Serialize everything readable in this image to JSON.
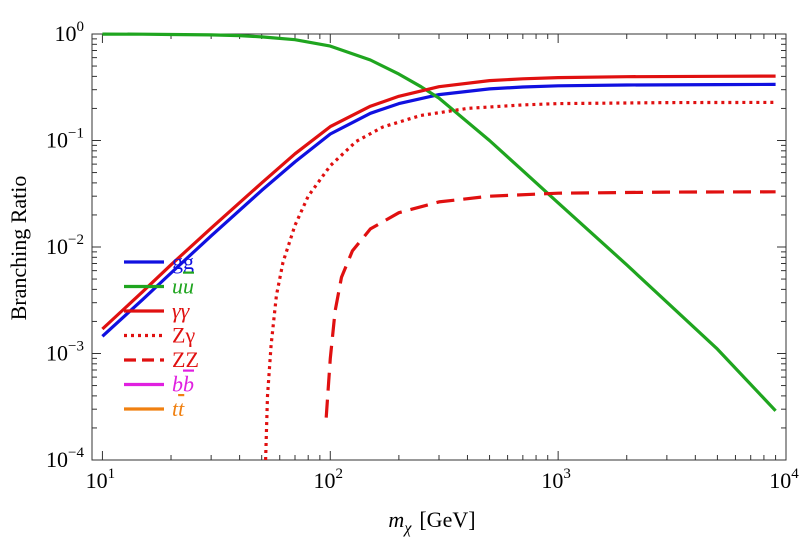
{
  "chart_data": {
    "type": "line",
    "x_scale": "log",
    "y_scale": "log",
    "xlim": [
      9,
      10000
    ],
    "ylim": [
      0.0001,
      1
    ],
    "xlabel": {
      "main": "m",
      "subscript": "χ",
      "unit": "[GeV]"
    },
    "ylabel": "Branching Ratio",
    "x_ticks": [
      {
        "base": "10",
        "exp": "1",
        "value": 10
      },
      {
        "base": "10",
        "exp": "2",
        "value": 100
      },
      {
        "base": "10",
        "exp": "3",
        "value": 1000
      },
      {
        "base": "10",
        "exp": "4",
        "value": 10000
      }
    ],
    "y_ticks": [
      {
        "base": "10",
        "exp": "0",
        "value": 1
      },
      {
        "base": "10",
        "exp": "−1",
        "value": 0.1
      },
      {
        "base": "10",
        "exp": "−2",
        "value": 0.01
      },
      {
        "base": "10",
        "exp": "−3",
        "value": 0.001
      },
      {
        "base": "10",
        "exp": "−4",
        "value": 0.0001
      }
    ],
    "legend_position": "lower-left",
    "series": [
      {
        "name": "gg",
        "legend": {
          "base": "gg",
          "bar": ""
        },
        "color": "#1010e0",
        "dash": "solid",
        "italic": false,
        "x": [
          10,
          15,
          20,
          30,
          50,
          70,
          100,
          150,
          200,
          300,
          500,
          700,
          1000,
          2000,
          5000,
          9000
        ],
        "y": [
          0.00145,
          0.0032,
          0.0057,
          0.0127,
          0.034,
          0.063,
          0.115,
          0.18,
          0.222,
          0.27,
          0.305,
          0.318,
          0.326,
          0.332,
          0.335,
          0.336
        ]
      },
      {
        "name": "uū",
        "legend": {
          "base": "u",
          "bar": "u"
        },
        "color": "#1fa51f",
        "dash": "solid",
        "italic": true,
        "x": [
          10,
          15,
          20,
          30,
          40,
          50,
          70,
          100,
          150,
          200,
          250,
          300,
          500,
          700,
          1000,
          2000,
          5000,
          9000
        ],
        "y": [
          0.998,
          0.995,
          0.99,
          0.98,
          0.965,
          0.94,
          0.885,
          0.77,
          0.57,
          0.42,
          0.32,
          0.25,
          0.1,
          0.052,
          0.026,
          0.0068,
          0.0011,
          0.00029
        ]
      },
      {
        "name": "γγ",
        "legend": {
          "base": "γγ",
          "bar": ""
        },
        "color": "#e01010",
        "dash": "solid",
        "italic": true,
        "x": [
          10,
          15,
          20,
          30,
          50,
          70,
          100,
          150,
          200,
          300,
          500,
          700,
          1000,
          2000,
          5000,
          9000
        ],
        "y": [
          0.0017,
          0.0038,
          0.0068,
          0.015,
          0.04,
          0.075,
          0.135,
          0.21,
          0.26,
          0.32,
          0.365,
          0.38,
          0.39,
          0.397,
          0.401,
          0.402
        ]
      },
      {
        "name": "Zγ",
        "legend": {
          "base": "Zγ",
          "bar": ""
        },
        "color": "#e01010",
        "dash": "dotted",
        "italic": false,
        "x": [
          52,
          53,
          55,
          58,
          62,
          70,
          80,
          100,
          130,
          170,
          250,
          400,
          700,
          1000,
          3000,
          9000
        ],
        "y": [
          0.0001,
          0.0004,
          0.0012,
          0.0035,
          0.0072,
          0.016,
          0.03,
          0.058,
          0.098,
          0.134,
          0.172,
          0.2,
          0.216,
          0.222,
          0.227,
          0.228
        ]
      },
      {
        "name": "ZZ",
        "legend": {
          "base": "ZZ",
          "bar": ""
        },
        "color": "#e01010",
        "dash": "dashed",
        "italic": false,
        "x": [
          96,
          100,
          105,
          112,
          125,
          150,
          200,
          300,
          500,
          1000,
          3000,
          9000
        ],
        "y": [
          0.00025,
          0.0009,
          0.0025,
          0.0052,
          0.0092,
          0.0148,
          0.021,
          0.0265,
          0.03,
          0.032,
          0.0328,
          0.033
        ]
      },
      {
        "name": "bb̄",
        "legend": {
          "base": "b",
          "bar": "b"
        },
        "color": "#e020e0",
        "dash": "solid",
        "italic": true,
        "x": [],
        "y": []
      },
      {
        "name": "tt̄",
        "legend": {
          "base": "t",
          "bar": "t"
        },
        "color": "#f08010",
        "dash": "solid",
        "italic": true,
        "x": [],
        "y": []
      }
    ]
  }
}
